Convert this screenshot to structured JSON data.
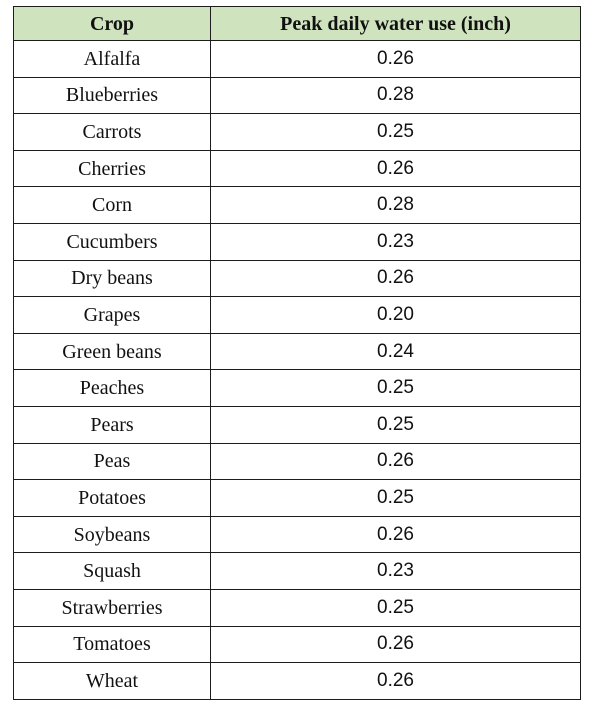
{
  "table": {
    "headers": {
      "crop": "Crop",
      "water_use": "Peak daily water use (inch)"
    },
    "header_bg_color": "#cfe3bf",
    "rows": [
      {
        "crop": "Alfalfa",
        "value": "0.26"
      },
      {
        "crop": "Blueberries",
        "value": "0.28"
      },
      {
        "crop": "Carrots",
        "value": "0.25"
      },
      {
        "crop": "Cherries",
        "value": "0.26"
      },
      {
        "crop": "Corn",
        "value": "0.28"
      },
      {
        "crop": "Cucumbers",
        "value": "0.23"
      },
      {
        "crop": "Dry beans",
        "value": "0.26"
      },
      {
        "crop": "Grapes",
        "value": "0.20"
      },
      {
        "crop": "Green beans",
        "value": "0.24"
      },
      {
        "crop": "Peaches",
        "value": "0.25"
      },
      {
        "crop": "Pears",
        "value": "0.25"
      },
      {
        "crop": "Peas",
        "value": "0.26"
      },
      {
        "crop": "Potatoes",
        "value": "0.25"
      },
      {
        "crop": "Soybeans",
        "value": "0.26"
      },
      {
        "crop": "Squash",
        "value": "0.23"
      },
      {
        "crop": "Strawberries",
        "value": "0.25"
      },
      {
        "crop": "Tomatoes",
        "value": "0.26"
      },
      {
        "crop": "Wheat",
        "value": "0.26"
      }
    ]
  }
}
